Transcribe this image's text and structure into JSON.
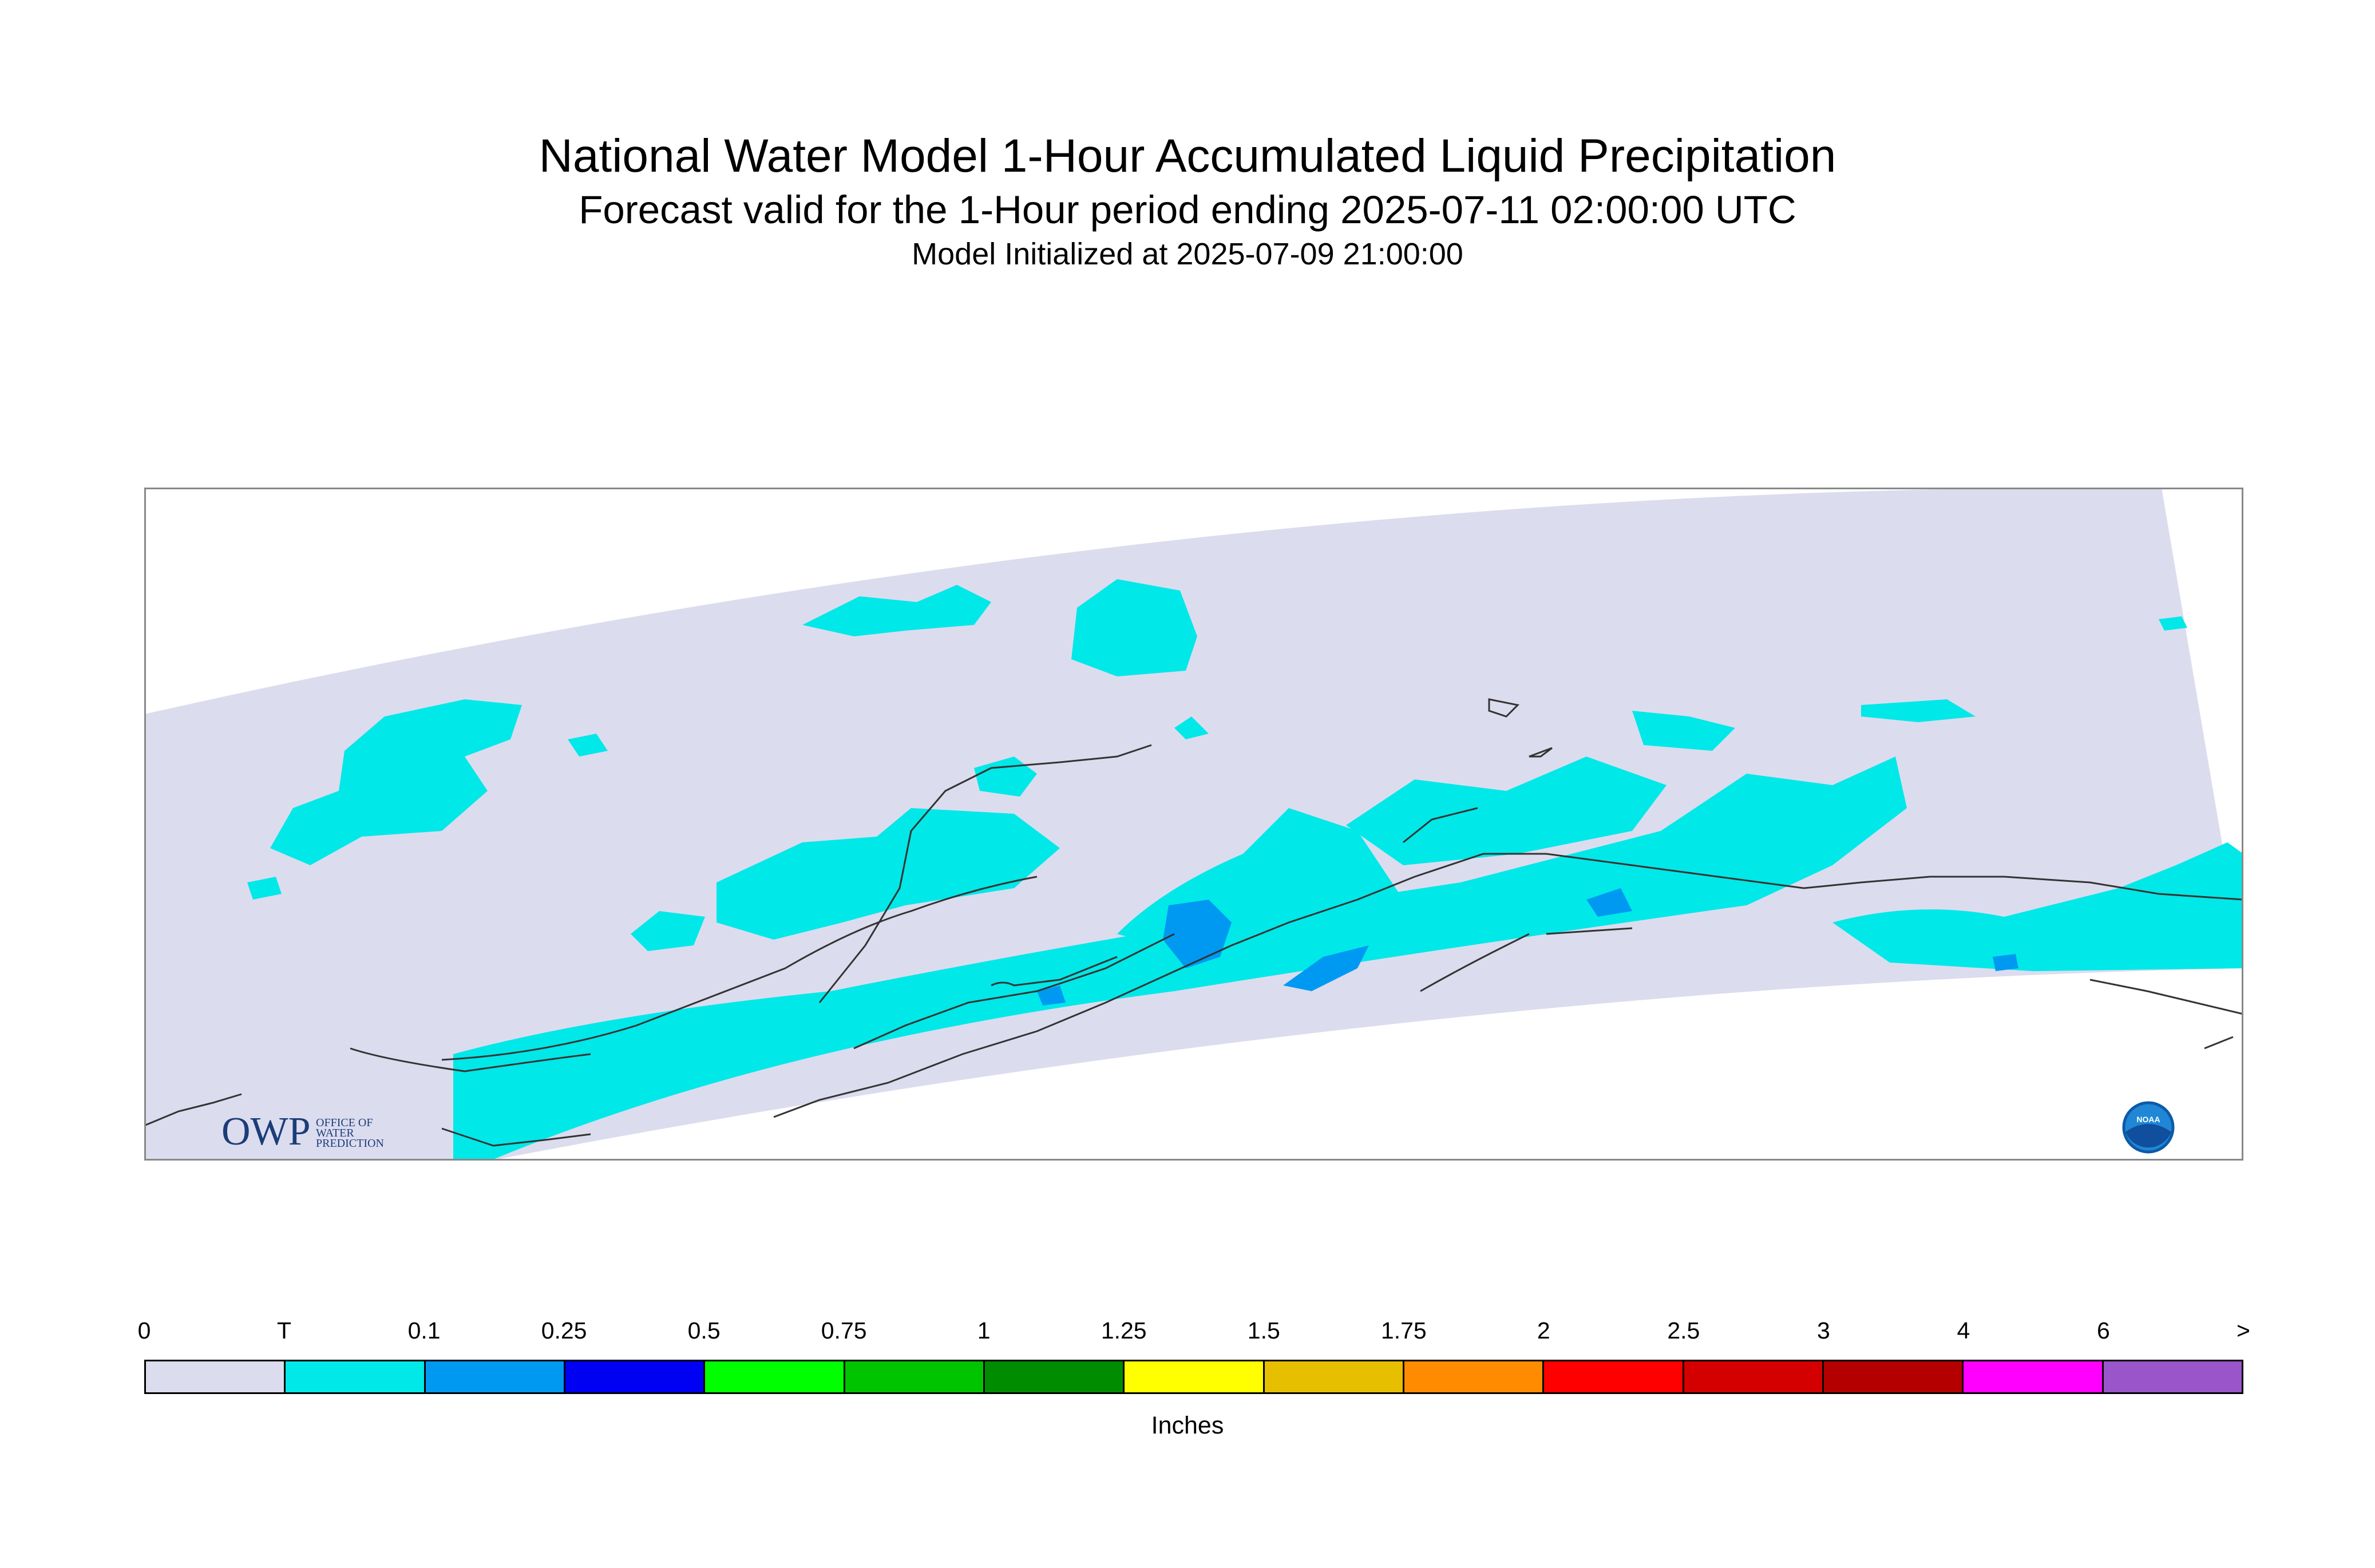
{
  "header": {
    "title": "National Water Model 1-Hour Accumulated Liquid Precipitation",
    "subtitle": "Forecast valid for the 1-Hour period ending 2025-07-11 02:00:00 UTC",
    "init": "Model Initialized at 2025-07-09 21:00:00"
  },
  "logos": {
    "owp": {
      "mark": "OWP",
      "lines": [
        "OFFICE OF",
        "WATER",
        "PREDICTION"
      ]
    },
    "noaa": {
      "mark": "NOAA"
    }
  },
  "map": {
    "domain_fill_color": "#dcdcef",
    "coastline_color": "#333333"
  },
  "legend": {
    "units": "Inches",
    "labels": [
      "0",
      "T",
      "0.1",
      "0.25",
      "0.5",
      "0.75",
      "1",
      "1.25",
      "1.5",
      "1.75",
      "2",
      "2.5",
      "3",
      "4",
      "6",
      ">"
    ],
    "colors": [
      "#dcdcef",
      "#00e8e8",
      "#0099f2",
      "#0000f2",
      "#00ff00",
      "#00c400",
      "#008c00",
      "#ffff00",
      "#e6bf00",
      "#ff8c00",
      "#ff0000",
      "#d40000",
      "#b50000",
      "#ff00ff",
      "#9955c9"
    ]
  }
}
